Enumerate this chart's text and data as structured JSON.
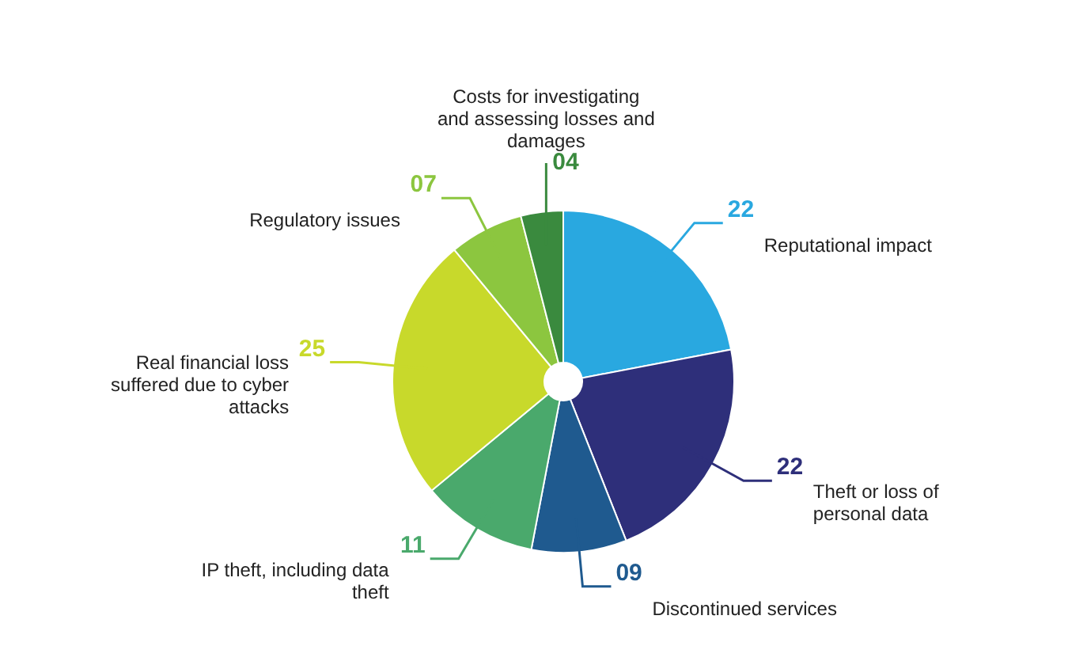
{
  "chart_data": {
    "type": "pie",
    "categories": [
      "Reputational impact",
      "Theft or loss of personal data",
      "Discontinued services",
      "IP theft, including data theft",
      "Real financial loss suffered due to cyber attacks",
      "Regulatory issues",
      "Costs for investigating and assessing losses and damages"
    ],
    "values": [
      22,
      22,
      9,
      11,
      25,
      7,
      4
    ],
    "value_labels": [
      "22",
      "22",
      "09",
      "11",
      "25",
      "07",
      "04"
    ],
    "colors": [
      "#29a8e0",
      "#2e2f7a",
      "#1f5a8f",
      "#4aa96c",
      "#c8d92b",
      "#8cc63f",
      "#3a8a3e"
    ],
    "legend": false
  }
}
